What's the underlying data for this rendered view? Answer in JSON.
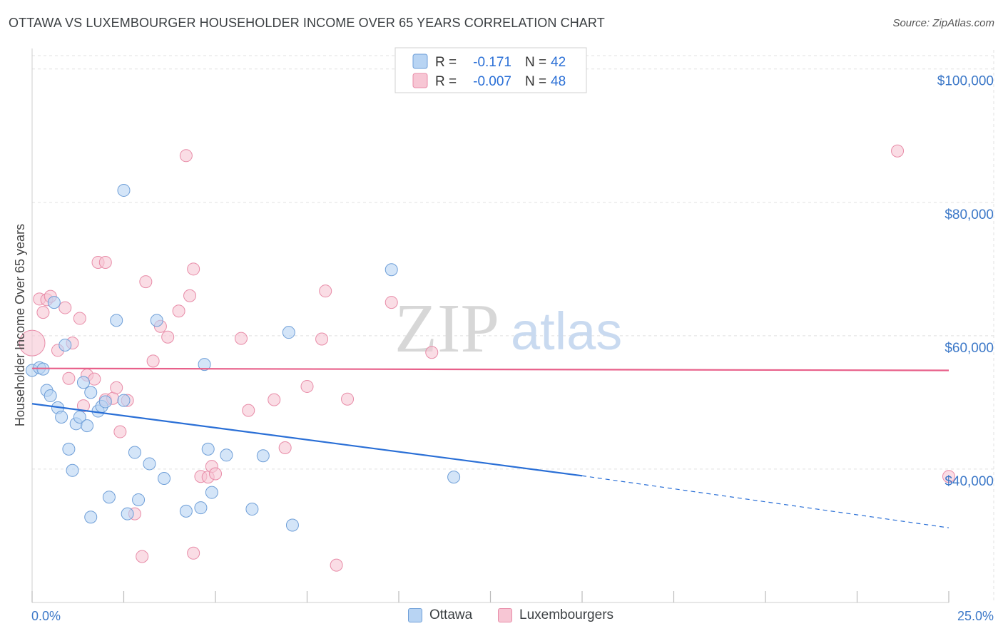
{
  "header": {
    "title": "OTTAWA VS LUXEMBOURGER HOUSEHOLDER INCOME OVER 65 YEARS CORRELATION CHART",
    "source": "Source: ZipAtlas.com"
  },
  "colors": {
    "ottawa_fill": "#b8d4f3",
    "ottawa_stroke": "#6f9fd8",
    "ottawa_line": "#2a6fd6",
    "lux_fill": "#f7c6d4",
    "lux_stroke": "#e88ca8",
    "lux_line": "#e8608a",
    "tick_text": "#3c78c8",
    "grid": "#e0e0e0"
  },
  "legend": {
    "rows": [
      {
        "r_label": "R =",
        "r_value": "-0.171",
        "n_label": "N =",
        "n_value": "42"
      },
      {
        "r_label": "R =",
        "r_value": "-0.007",
        "n_label": "N =",
        "n_value": "48"
      }
    ]
  },
  "bottom_legend": {
    "ottawa": "Ottawa",
    "lux": "Luxembourgers"
  },
  "watermark": {
    "zip": "ZIP",
    "atlas": "atlas"
  },
  "chart_data": {
    "type": "scatter",
    "title": "OTTAWA VS LUXEMBOURGER HOUSEHOLDER INCOME OVER 65 YEARS CORRELATION CHART",
    "xlabel": "",
    "ylabel": "Householder Income Over 65 years",
    "xlim": [
      0,
      25
    ],
    "ylim": [
      20000,
      102000
    ],
    "x_tick_labels": [
      "0.0%",
      "25.0%"
    ],
    "y_ticks": [
      40000,
      60000,
      80000,
      100000
    ],
    "y_tick_labels": [
      "$40,000",
      "$60,000",
      "$80,000",
      "$100,000"
    ],
    "grid": true,
    "legend_position": "top-center",
    "series": [
      {
        "name": "Ottawa",
        "r": -0.171,
        "n": 42,
        "trend": {
          "x0": 0.0,
          "y0": 49800,
          "x1": 15.0,
          "y1": 39000,
          "dashed_to_x": 25.0,
          "dashed_to_y": 31200
        },
        "points": [
          [
            0.0,
            54800
          ],
          [
            0.2,
            55200
          ],
          [
            0.3,
            55000
          ],
          [
            0.4,
            51800
          ],
          [
            0.5,
            51000
          ],
          [
            0.6,
            65000
          ],
          [
            0.7,
            49200
          ],
          [
            0.8,
            47800
          ],
          [
            0.9,
            58600
          ],
          [
            1.0,
            43000
          ],
          [
            1.1,
            39800
          ],
          [
            1.2,
            46800
          ],
          [
            1.3,
            47800
          ],
          [
            1.4,
            53000
          ],
          [
            1.5,
            46500
          ],
          [
            1.6,
            32800
          ],
          [
            1.6,
            51500
          ],
          [
            1.8,
            48700
          ],
          [
            1.9,
            49400
          ],
          [
            2.0,
            50100
          ],
          [
            2.1,
            35800
          ],
          [
            2.5,
            81800
          ],
          [
            2.3,
            62300
          ],
          [
            2.5,
            50300
          ],
          [
            2.6,
            33300
          ],
          [
            2.8,
            42500
          ],
          [
            2.9,
            35400
          ],
          [
            3.2,
            40800
          ],
          [
            3.4,
            62300
          ],
          [
            3.6,
            38600
          ],
          [
            4.2,
            33700
          ],
          [
            4.6,
            34200
          ],
          [
            4.7,
            55700
          ],
          [
            4.8,
            43000
          ],
          [
            4.9,
            36500
          ],
          [
            5.3,
            42100
          ],
          [
            6.0,
            34000
          ],
          [
            6.3,
            42000
          ],
          [
            7.0,
            60500
          ],
          [
            7.1,
            31600
          ],
          [
            9.8,
            69900
          ],
          [
            11.5,
            38800
          ]
        ]
      },
      {
        "name": "Luxembourgers",
        "r": -0.007,
        "n": 48,
        "trend": {
          "x0": 0.0,
          "y0": 55100,
          "x1": 25.0,
          "y1": 54800
        },
        "points": [
          [
            0.0,
            58900
          ],
          [
            0.2,
            65500
          ],
          [
            0.3,
            63500
          ],
          [
            0.4,
            65400
          ],
          [
            0.5,
            65900
          ],
          [
            0.7,
            57800
          ],
          [
            0.9,
            64200
          ],
          [
            1.0,
            53600
          ],
          [
            1.1,
            58900
          ],
          [
            1.3,
            62600
          ],
          [
            1.4,
            49500
          ],
          [
            1.5,
            54100
          ],
          [
            1.7,
            53500
          ],
          [
            1.8,
            71000
          ],
          [
            2.0,
            71000
          ],
          [
            2.0,
            50400
          ],
          [
            2.2,
            50600
          ],
          [
            2.3,
            52200
          ],
          [
            2.4,
            45600
          ],
          [
            2.6,
            50300
          ],
          [
            2.8,
            33300
          ],
          [
            3.0,
            26900
          ],
          [
            3.1,
            68100
          ],
          [
            3.3,
            56200
          ],
          [
            3.5,
            61400
          ],
          [
            3.7,
            59800
          ],
          [
            4.0,
            63700
          ],
          [
            4.2,
            87000
          ],
          [
            4.3,
            66000
          ],
          [
            4.4,
            27400
          ],
          [
            4.4,
            70000
          ],
          [
            4.6,
            38900
          ],
          [
            4.8,
            38800
          ],
          [
            4.9,
            40400
          ],
          [
            5.0,
            39300
          ],
          [
            5.7,
            59600
          ],
          [
            5.9,
            48800
          ],
          [
            6.6,
            50400
          ],
          [
            6.9,
            43200
          ],
          [
            7.5,
            52400
          ],
          [
            7.9,
            59500
          ],
          [
            8.0,
            66700
          ],
          [
            8.3,
            25600
          ],
          [
            8.6,
            50500
          ],
          [
            9.8,
            65000
          ],
          [
            10.9,
            57500
          ],
          [
            23.6,
            87700
          ],
          [
            25.0,
            38900
          ]
        ]
      }
    ]
  }
}
